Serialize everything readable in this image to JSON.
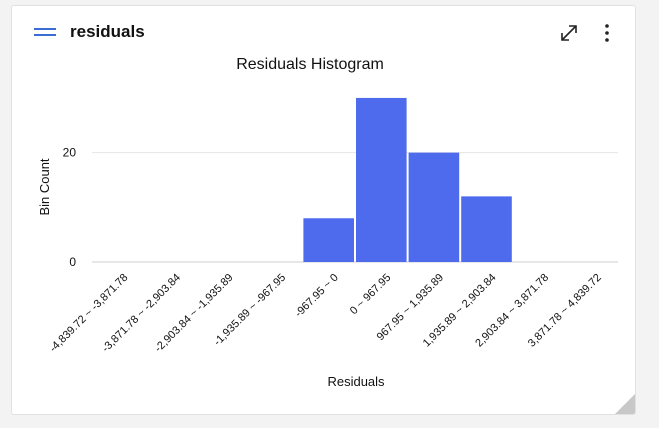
{
  "card": {
    "title": "residuals",
    "menu_icon": "hamburger-icon",
    "expand_icon": "expand-diagonal-icon",
    "more_icon": "vertical-ellipsis-icon",
    "resize_icon": "resize-grip-icon"
  },
  "colors": {
    "accent": "#3a6bd6",
    "bar": "#4f6bed",
    "grid": "#e6e6e6",
    "text": "#111111"
  },
  "chart_data": {
    "type": "bar",
    "title": "Residuals Histogram",
    "xlabel": "Residuals",
    "ylabel": "Bin Count",
    "categories": [
      "-4,839.72 ~ -3,871.78",
      "-3,871.78 ~ -2,903.84",
      "-2,903.84 ~ -1,935.89",
      "-1,935.89 ~ -967.95",
      "-967.95 ~ 0",
      "0 ~ 967.95",
      "967.95 ~ 1,935.89",
      "1,935.89 ~ 2,903.84",
      "2,903.84 ~ 3,871.78",
      "3,871.78 ~ 4,839.72"
    ],
    "values": [
      0,
      0,
      0,
      0,
      8,
      30,
      20,
      12,
      0,
      0
    ],
    "yticks": [
      0,
      20
    ],
    "ylim": [
      0,
      32
    ],
    "grid": true,
    "legend": "none"
  }
}
